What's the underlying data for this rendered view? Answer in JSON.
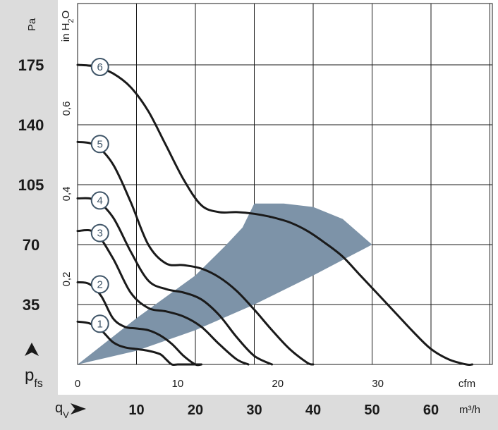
{
  "chart_data": {
    "type": "line",
    "title": "",
    "ylabel": "p",
    "ylabel_sub": "fs",
    "xlabel": "q",
    "xlabel_sub": "V",
    "y_unit": "Pa",
    "y_ticks": [
      35,
      70,
      105,
      140,
      175
    ],
    "ylim": [
      0,
      210
    ],
    "y2_unit": "in H2O",
    "y2_unit_main": "in H",
    "y2_unit_sub": "2",
    "y2_unit_tail": "O",
    "y2_ticks": [
      {
        "value": 0.2,
        "label": "0,2"
      },
      {
        "value": 0.4,
        "label": "0,4"
      },
      {
        "value": 0.6,
        "label": "0,6"
      }
    ],
    "x_cfm_unit": "cfm",
    "x_cfm_ticks": [
      0,
      10,
      20,
      30
    ],
    "x_m3h_unit": "m³/h",
    "x_m3h_ticks": [
      10,
      20,
      30,
      40,
      50,
      60
    ],
    "xlim_m3h": [
      0,
      70
    ],
    "grid": true,
    "series": [
      {
        "marker": "1",
        "x": [
          0,
          2,
          4,
          6,
          8,
          10,
          12,
          14,
          15,
          16,
          17,
          18,
          19,
          20,
          21
        ],
        "y": [
          25,
          24,
          20,
          13,
          10,
          9,
          8,
          6,
          3,
          0,
          0,
          0,
          0,
          0,
          0
        ]
      },
      {
        "marker": "2",
        "x": [
          0,
          2,
          4,
          6,
          8,
          10,
          12,
          14,
          16,
          18,
          20,
          21
        ],
        "y": [
          48,
          47,
          40,
          27,
          22,
          21,
          20,
          17,
          12,
          5,
          0,
          0
        ]
      },
      {
        "marker": "3",
        "x": [
          0,
          3,
          6,
          9,
          12,
          15,
          18,
          21,
          24,
          27,
          29
        ],
        "y": [
          78,
          77,
          62,
          42,
          33,
          31,
          28,
          22,
          12,
          3,
          0
        ]
      },
      {
        "marker": "4",
        "x": [
          0,
          3,
          6,
          9,
          12,
          15,
          18,
          21,
          24,
          27,
          30,
          33
        ],
        "y": [
          97,
          96,
          86,
          66,
          49,
          44,
          42,
          38,
          29,
          16,
          5,
          0
        ]
      },
      {
        "marker": "5",
        "x": [
          0,
          3,
          6,
          9,
          12,
          15,
          18,
          21,
          24,
          27,
          30,
          33,
          36,
          39,
          40
        ],
        "y": [
          130,
          128,
          117,
          95,
          70,
          59,
          58,
          56,
          51,
          43,
          32,
          20,
          9,
          1,
          0
        ]
      },
      {
        "marker": "6",
        "x": [
          0,
          3,
          6,
          9,
          12,
          15,
          18,
          21,
          24,
          27,
          30,
          33,
          36,
          39,
          42,
          45,
          48,
          51,
          54,
          57,
          60,
          63,
          66,
          67
        ],
        "y": [
          175,
          174,
          170,
          162,
          148,
          128,
          108,
          93,
          89,
          89,
          88,
          86,
          83,
          78,
          71,
          63,
          52,
          41,
          30,
          19,
          9,
          3,
          0,
          0
        ]
      }
    ],
    "operating_region": {
      "upper_x": [
        0,
        10,
        20,
        25,
        28,
        30
      ],
      "upper_y": [
        0,
        27,
        52,
        69,
        80,
        94
      ],
      "top_x": [
        30,
        35,
        40,
        45,
        50
      ],
      "top_y": [
        94,
        94,
        92,
        85,
        70
      ],
      "lower_x": [
        50,
        40,
        30,
        20,
        10,
        0
      ],
      "lower_y": [
        70,
        52,
        35,
        20,
        8,
        0
      ]
    }
  }
}
